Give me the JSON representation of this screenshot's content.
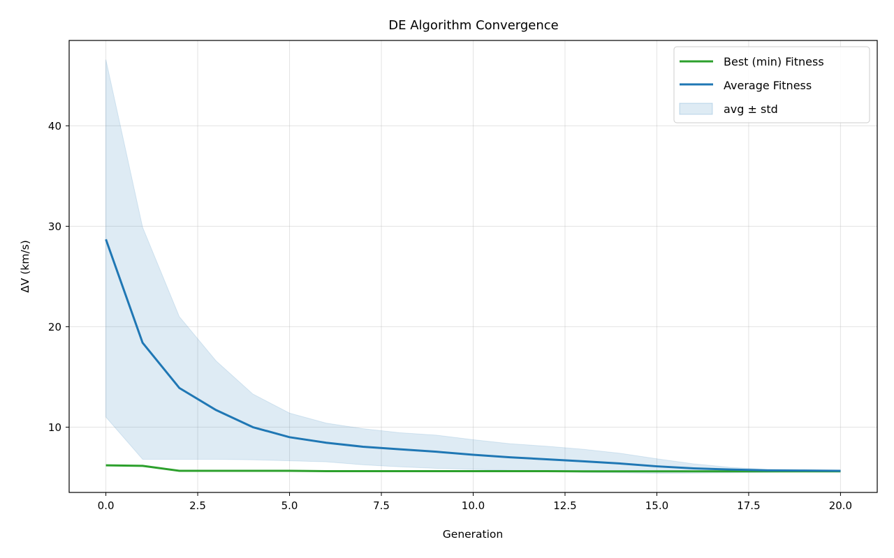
{
  "chart_data": {
    "type": "line",
    "title": "DE Algorithm Convergence",
    "xlabel": "Generation",
    "ylabel": "ΔV (km/s)",
    "xlim": [
      -1,
      21
    ],
    "ylim": [
      3.5,
      48.5
    ],
    "x_ticks": [
      0,
      2.5,
      5,
      7.5,
      10,
      12.5,
      15,
      17.5,
      20
    ],
    "x_tick_labels": [
      "0.0",
      "2.5",
      "5.0",
      "7.5",
      "10.0",
      "12.5",
      "15.0",
      "17.5",
      "20.0"
    ],
    "y_ticks": [
      10,
      20,
      30,
      40
    ],
    "y_tick_labels": [
      "10",
      "20",
      "30",
      "40"
    ],
    "grid": true,
    "legend_position": "top-right",
    "x": [
      0,
      1,
      2,
      3,
      4,
      5,
      6,
      7,
      8,
      9,
      10,
      11,
      12,
      13,
      14,
      15,
      16,
      17,
      18,
      19,
      20
    ],
    "series": [
      {
        "name": "Best (min) Fitness",
        "color": "#2ca02c",
        "kind": "line",
        "values": [
          6.2,
          6.15,
          5.65,
          5.65,
          5.65,
          5.65,
          5.62,
          5.62,
          5.62,
          5.62,
          5.62,
          5.62,
          5.62,
          5.6,
          5.6,
          5.6,
          5.6,
          5.6,
          5.6,
          5.6,
          5.6
        ]
      },
      {
        "name": "Average Fitness",
        "color": "#1f77b4",
        "kind": "line",
        "values": [
          28.7,
          18.4,
          13.9,
          11.7,
          10.0,
          9.0,
          8.45,
          8.05,
          7.8,
          7.55,
          7.25,
          7.0,
          6.8,
          6.6,
          6.38,
          6.1,
          5.9,
          5.78,
          5.7,
          5.68,
          5.65
        ]
      },
      {
        "name": "avg ± std",
        "color": "#1f77b4",
        "kind": "band",
        "upper": [
          46.6,
          29.9,
          21.0,
          16.6,
          13.3,
          11.4,
          10.4,
          9.85,
          9.45,
          9.2,
          8.75,
          8.35,
          8.1,
          7.8,
          7.4,
          6.85,
          6.35,
          6.0,
          5.8,
          5.75,
          5.7
        ],
        "lower": [
          11.0,
          6.8,
          6.8,
          6.8,
          6.75,
          6.65,
          6.55,
          6.25,
          6.05,
          5.9,
          5.8,
          5.7,
          5.6,
          5.5,
          5.45,
          5.4,
          5.42,
          5.45,
          5.5,
          5.55,
          5.6
        ]
      }
    ]
  }
}
